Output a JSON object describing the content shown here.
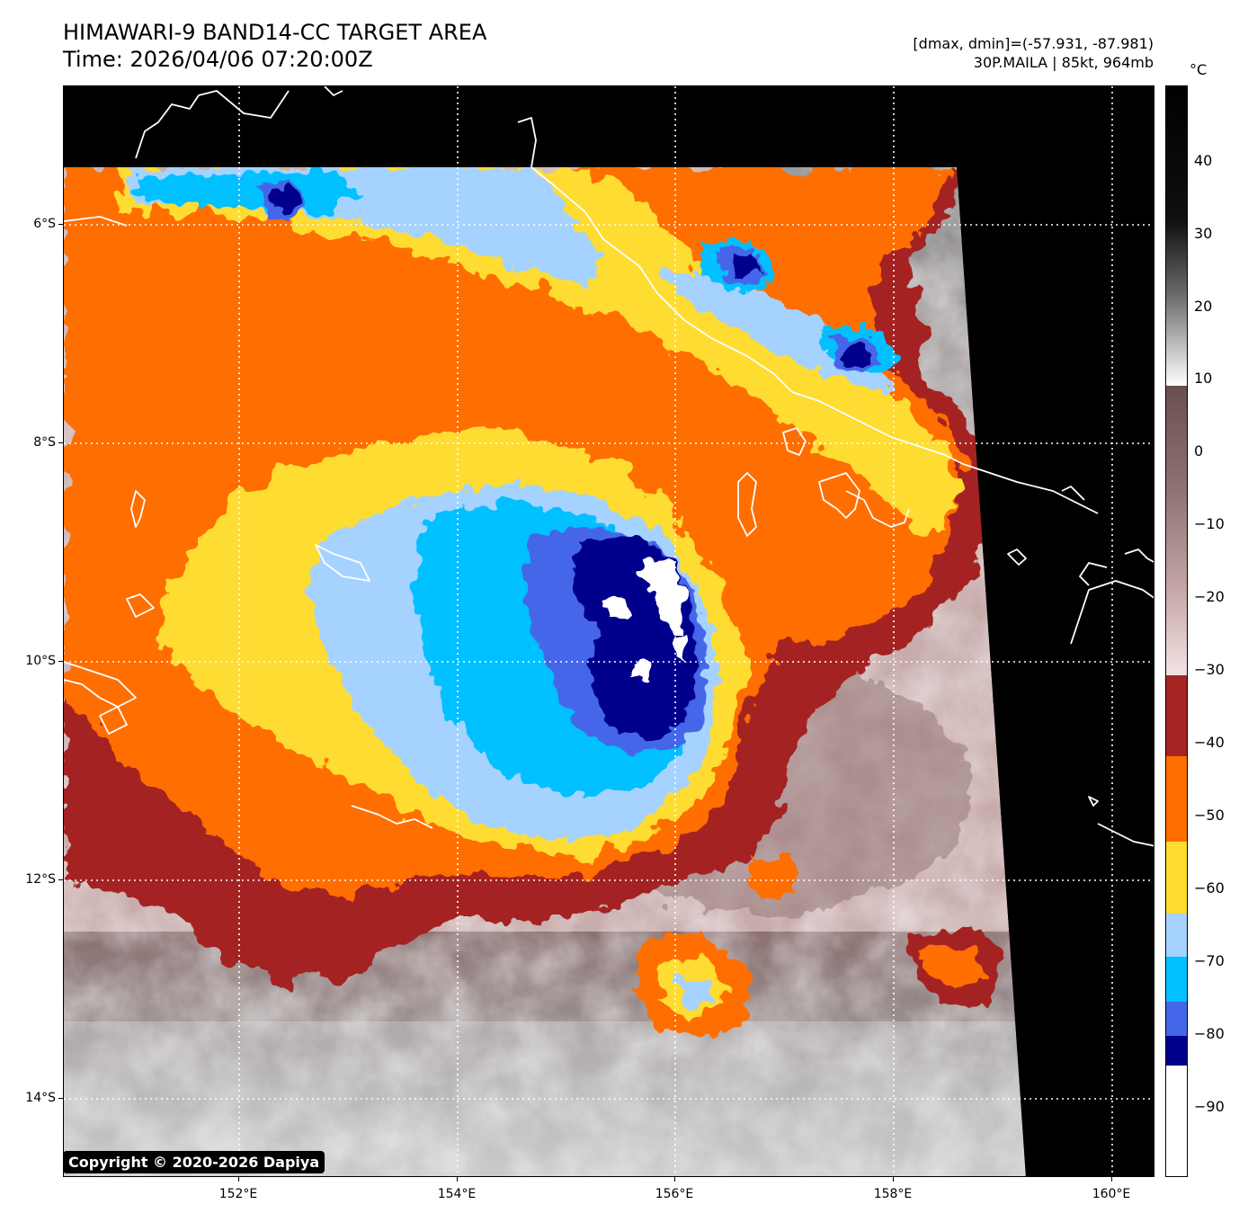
{
  "header": {
    "title_line1": "HIMAWARI-9 BAND14-CC TARGET AREA",
    "title_line2": "Time: 2026/04/06 07:20:00Z",
    "info_line1": "[dmax, dmin]=(-57.931, -87.981)",
    "info_line2": "30P.MAILA | 85kt, 964mb"
  },
  "axes": {
    "lat_labels": [
      "6°S",
      "8°S",
      "10°S",
      "12°S",
      "14°S"
    ],
    "lon_labels": [
      "152°E",
      "154°E",
      "156°E",
      "158°E",
      "160°E"
    ]
  },
  "colorbar": {
    "unit": "°C",
    "tick_labels": [
      "40",
      "30",
      "20",
      "10",
      "0",
      "−10",
      "−20",
      "−30",
      "−40",
      "−50",
      "−60",
      "−70",
      "−80",
      "−90"
    ],
    "palette": {
      "black": "#000000",
      "gray_light": "#f0f0f0",
      "brown_gray": "#7a6060",
      "pink_gray": "#e8d0d0",
      "dark_red": "#a52424",
      "orange": "#ff6e00",
      "yellow": "#fedc30",
      "light_blue": "#a6d2ff",
      "cyan": "#00c0ff",
      "royal_blue": "#4466e8",
      "navy": "#00008c",
      "white": "#ffffff"
    }
  },
  "copyright": "Copyright © 2020-2026 Dapiya"
}
